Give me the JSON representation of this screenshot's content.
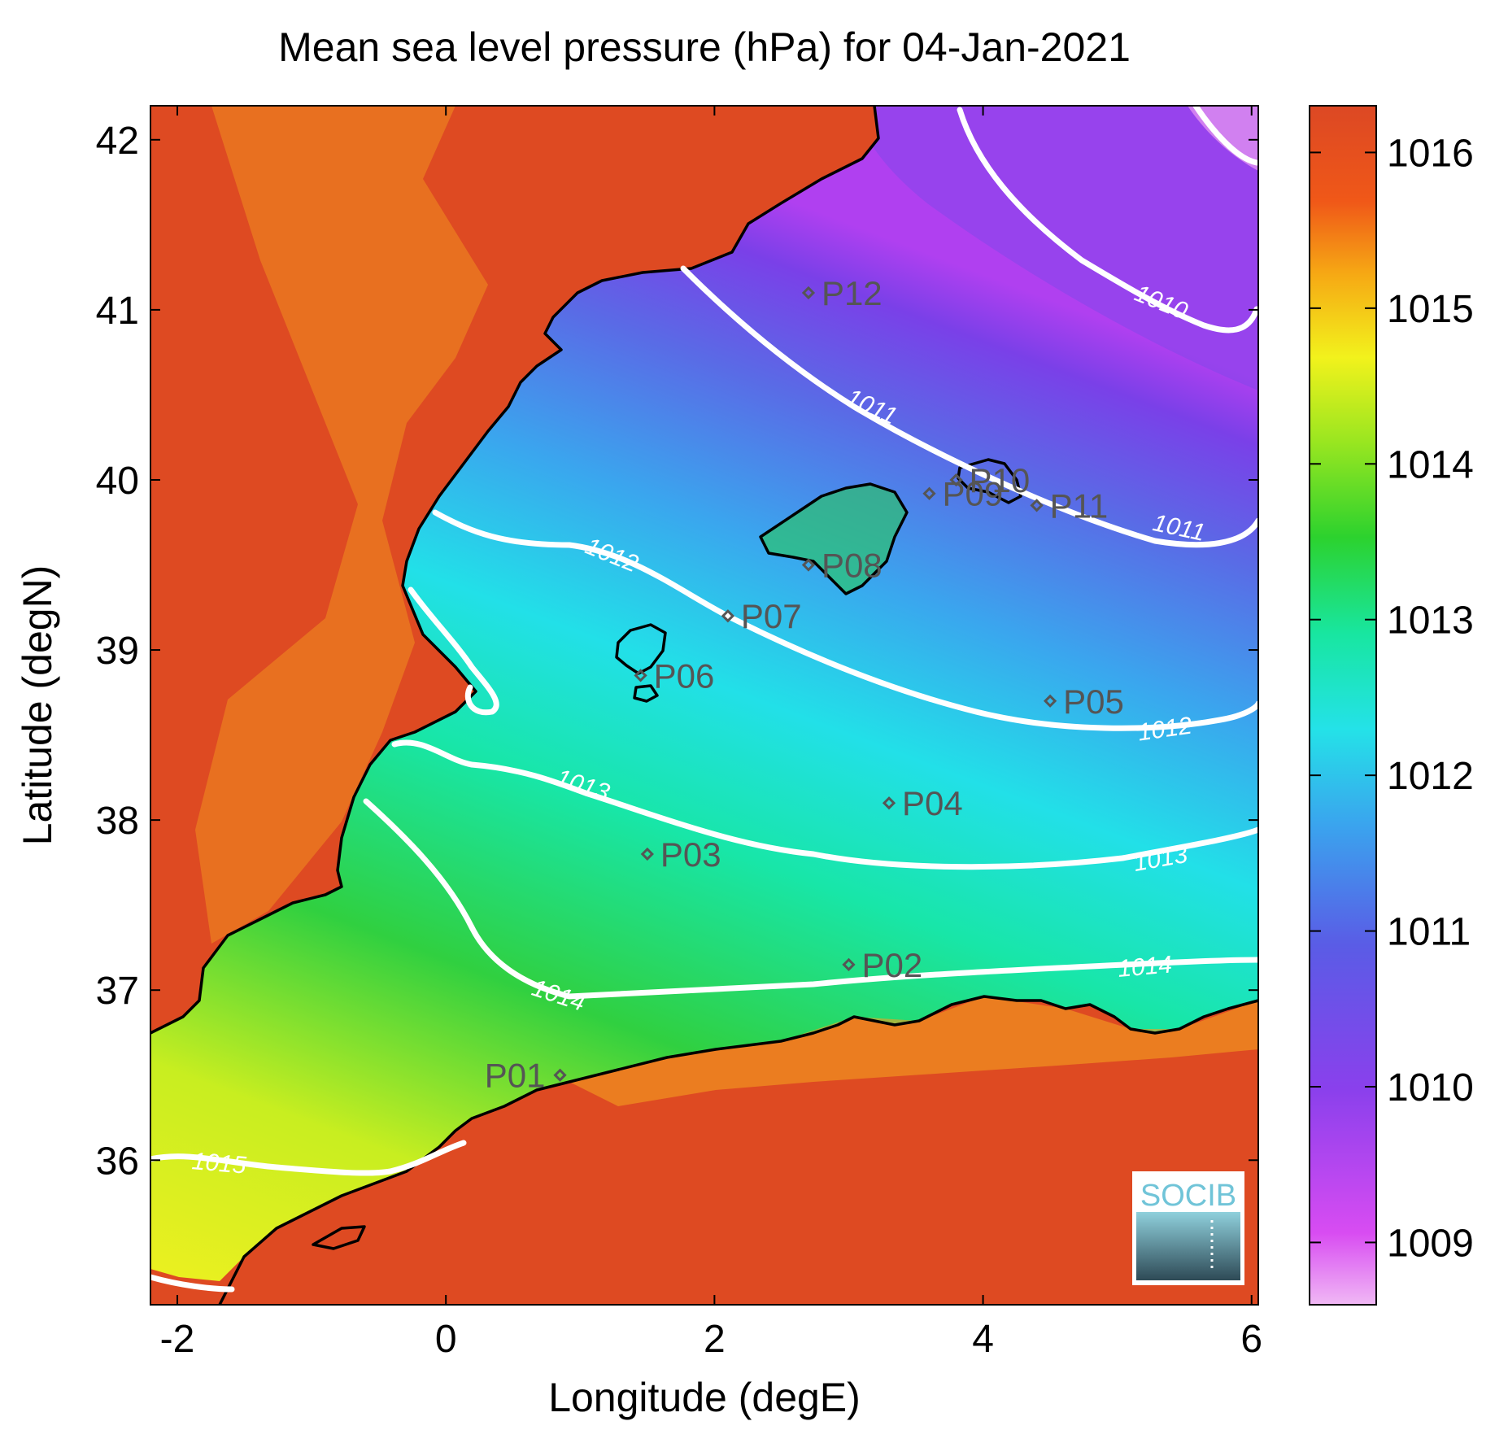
{
  "title": "Mean sea level pressure (hPa) for 04-Jan-2021",
  "xlabel": "Longitude (degE)",
  "ylabel": "Latitude (degN)",
  "logo_text": "SOCIB",
  "colors": {
    "land": "#de4a22",
    "coast": "#000000",
    "contour": "#ffffff",
    "point": "#555555"
  },
  "chart_data": {
    "type": "heatmap",
    "x_ticks": [
      "-2",
      "0",
      "2",
      "4",
      "6"
    ],
    "y_ticks": [
      "36",
      "37",
      "38",
      "39",
      "40",
      "41",
      "42"
    ],
    "xlim": [
      -2.2,
      6.05
    ],
    "ylim": [
      35.15,
      42.2
    ],
    "colorbar": {
      "ticks": [
        "1009",
        "1010",
        "1011",
        "1012",
        "1013",
        "1014",
        "1015",
        "1016"
      ],
      "range": [
        1008.6,
        1016.3
      ]
    },
    "contour_labels": [
      {
        "text": "1010",
        "lon": 5.4,
        "lat": 40.9
      },
      {
        "text": "1011",
        "lon": 3.2,
        "lat": 40.25
      },
      {
        "text": "1011",
        "lon": 5.2,
        "lat": 39.6
      },
      {
        "text": "1012",
        "lon": 1.3,
        "lat": 39.5
      },
      {
        "text": "1012",
        "lon": 5.4,
        "lat": 38.55
      },
      {
        "text": "1013",
        "lon": 1.1,
        "lat": 38.1
      },
      {
        "text": "1013",
        "lon": 5.4,
        "lat": 37.9
      },
      {
        "text": "1014",
        "lon": 0.9,
        "lat": 36.93
      },
      {
        "text": "1014",
        "lon": 5.05,
        "lat": 37.13
      },
      {
        "text": "1015",
        "lon": -1.7,
        "lat": 35.95
      }
    ],
    "points": [
      {
        "label": "P01",
        "lon": 0.85,
        "lat": 36.5
      },
      {
        "label": "P02",
        "lon": 3.0,
        "lat": 37.15
      },
      {
        "label": "P03",
        "lon": 1.5,
        "lat": 37.8
      },
      {
        "label": "P04",
        "lon": 3.3,
        "lat": 38.1
      },
      {
        "label": "P05",
        "lon": 4.5,
        "lat": 38.7
      },
      {
        "label": "P06",
        "lon": 1.45,
        "lat": 38.85
      },
      {
        "label": "P07",
        "lon": 2.1,
        "lat": 39.2
      },
      {
        "label": "P08",
        "lon": 2.7,
        "lat": 39.5
      },
      {
        "label": "P09",
        "lon": 3.6,
        "lat": 39.92
      },
      {
        "label": "P10",
        "lon": 3.8,
        "lat": 40.0
      },
      {
        "label": "P11",
        "lon": 4.4,
        "lat": 39.85
      },
      {
        "label": "P12",
        "lon": 2.7,
        "lat": 41.1
      }
    ]
  }
}
